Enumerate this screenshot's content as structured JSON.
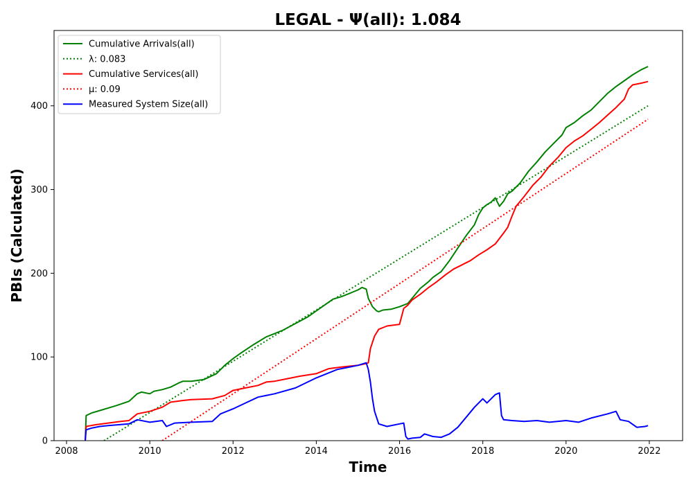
{
  "chart_data": {
    "type": "line",
    "title": "LEGAL -  Ψ(all): 1.084",
    "xlabel": "Time",
    "ylabel": "PBIs (Calculated)",
    "xlim": [
      2007.7,
      2022.8
    ],
    "ylim": [
      0,
      490
    ],
    "x_ticks": [
      2008,
      2010,
      2012,
      2014,
      2016,
      2018,
      2020,
      2022
    ],
    "x_tick_labels": [
      "2008",
      "2010",
      "2012",
      "2014",
      "2016",
      "2018",
      "2020",
      "2022"
    ],
    "y_ticks": [
      0,
      100,
      200,
      300,
      400
    ],
    "y_tick_labels": [
      "0",
      "100",
      "200",
      "300",
      "400"
    ],
    "grid": false,
    "legend_position": "top-left",
    "series": [
      {
        "name": "Cumulative Arrivals(all)",
        "color": "#008000",
        "style": "solid",
        "x": [
          2008.45,
          2008.47,
          2008.6,
          2008.8,
          2009.0,
          2009.2,
          2009.5,
          2009.7,
          2009.8,
          2010.0,
          2010.1,
          2010.3,
          2010.5,
          2010.7,
          2010.8,
          2011.0,
          2011.3,
          2011.6,
          2011.8,
          2012.0,
          2012.2,
          2012.5,
          2012.8,
          2013.0,
          2013.2,
          2013.5,
          2013.8,
          2014.0,
          2014.2,
          2014.4,
          2014.6,
          2014.8,
          2015.0,
          2015.1,
          2015.2,
          2015.25,
          2015.35,
          2015.45,
          2015.5,
          2015.6,
          2015.8,
          2016.0,
          2016.2,
          2016.3,
          2016.5,
          2016.6,
          2016.7,
          2016.8,
          2017.0,
          2017.2,
          2017.4,
          2017.6,
          2017.8,
          2017.9,
          2018.0,
          2018.1,
          2018.2,
          2018.3,
          2018.4,
          2018.5,
          2018.6,
          2018.7,
          2018.9,
          2019.1,
          2019.3,
          2019.5,
          2019.7,
          2019.9,
          2020.0,
          2020.2,
          2020.4,
          2020.6,
          2020.8,
          2021.0,
          2021.2,
          2021.4,
          2021.6,
          2021.8,
          2021.97
        ],
        "y": [
          0,
          30,
          33,
          36,
          39,
          42,
          47,
          56,
          58,
          56,
          59,
          61,
          64,
          69,
          71,
          71,
          73,
          80,
          90,
          98,
          105,
          115,
          124,
          128,
          132,
          140,
          148,
          155,
          162,
          169,
          172,
          176,
          180,
          183,
          181,
          170,
          160,
          155,
          154,
          156,
          157,
          160,
          164,
          170,
          182,
          186,
          190,
          195,
          202,
          215,
          230,
          245,
          258,
          270,
          278,
          282,
          285,
          290,
          280,
          286,
          295,
          298,
          308,
          322,
          333,
          345,
          355,
          365,
          374,
          380,
          388,
          395,
          405,
          415,
          423,
          430,
          437,
          443,
          447
        ]
      },
      {
        "name": "λ: 0.083",
        "color": "#008000",
        "style": "dotted",
        "x": [
          2008.9,
          2021.97
        ],
        "y": [
          0,
          400
        ]
      },
      {
        "name": "Cumulative Services(all)",
        "color": "#ff0000",
        "style": "solid",
        "x": [
          2008.45,
          2008.47,
          2008.7,
          2009.0,
          2009.3,
          2009.5,
          2009.7,
          2010.0,
          2010.3,
          2010.5,
          2010.8,
          2011.0,
          2011.5,
          2011.8,
          2012.0,
          2012.3,
          2012.6,
          2012.8,
          2013.0,
          2013.3,
          2013.6,
          2014.0,
          2014.3,
          2014.6,
          2015.0,
          2015.2,
          2015.25,
          2015.3,
          2015.4,
          2015.5,
          2015.7,
          2016.0,
          2016.1,
          2016.2,
          2016.3,
          2016.5,
          2016.7,
          2016.9,
          2017.1,
          2017.3,
          2017.5,
          2017.7,
          2017.9,
          2018.1,
          2018.3,
          2018.5,
          2018.6,
          2018.7,
          2018.8,
          2018.9,
          2019.0,
          2019.2,
          2019.4,
          2019.6,
          2019.8,
          2020.0,
          2020.2,
          2020.4,
          2020.6,
          2020.8,
          2021.0,
          2021.2,
          2021.4,
          2021.5,
          2021.6,
          2021.8,
          2021.97
        ],
        "y": [
          0,
          17,
          19,
          21,
          23,
          24,
          32,
          35,
          40,
          46,
          48,
          49,
          50,
          54,
          60,
          63,
          66,
          70,
          71,
          74,
          77,
          80,
          86,
          88,
          90,
          92,
          93,
          110,
          125,
          133,
          137,
          139,
          158,
          162,
          168,
          175,
          183,
          190,
          198,
          205,
          210,
          215,
          222,
          228,
          235,
          248,
          255,
          268,
          280,
          286,
          292,
          305,
          315,
          328,
          338,
          350,
          358,
          364,
          372,
          380,
          389,
          398,
          408,
          420,
          425,
          427,
          429
        ]
      },
      {
        "name": "μ: 0.09",
        "color": "#ff0000",
        "style": "dotted",
        "x": [
          2010.3,
          2021.97
        ],
        "y": [
          0,
          384
        ]
      },
      {
        "name": "Measured System Size(all)",
        "color": "#0000ff",
        "style": "solid",
        "x": [
          2008.45,
          2008.47,
          2008.6,
          2008.8,
          2009.0,
          2009.5,
          2009.7,
          2010.0,
          2010.3,
          2010.4,
          2010.6,
          2011.0,
          2011.5,
          2011.7,
          2012.0,
          2012.3,
          2012.6,
          2013.0,
          2013.5,
          2014.0,
          2014.5,
          2015.0,
          2015.2,
          2015.25,
          2015.3,
          2015.35,
          2015.4,
          2015.5,
          2015.7,
          2016.0,
          2016.1,
          2016.15,
          2016.2,
          2016.3,
          2016.5,
          2016.6,
          2016.8,
          2017.0,
          2017.2,
          2017.4,
          2017.6,
          2017.8,
          2018.0,
          2018.1,
          2018.3,
          2018.4,
          2018.45,
          2018.5,
          2018.7,
          2019.0,
          2019.3,
          2019.6,
          2020.0,
          2020.3,
          2020.6,
          2021.0,
          2021.2,
          2021.3,
          2021.5,
          2021.7,
          2021.9,
          2021.97
        ],
        "y": [
          0,
          13,
          15,
          17,
          18,
          20,
          25,
          22,
          24,
          17,
          21,
          22,
          23,
          32,
          38,
          45,
          52,
          56,
          63,
          75,
          85,
          90,
          93,
          85,
          70,
          50,
          35,
          20,
          17,
          20,
          21,
          5,
          2,
          3,
          4,
          8,
          5,
          4,
          8,
          16,
          28,
          40,
          50,
          45,
          55,
          57,
          30,
          25,
          24,
          23,
          24,
          22,
          24,
          22,
          27,
          32,
          35,
          25,
          23,
          16,
          17,
          18
        ]
      }
    ],
    "legend": [
      {
        "label": "Cumulative Arrivals(all)",
        "color": "#008000",
        "style": "solid"
      },
      {
        "label": "λ: 0.083",
        "color": "#008000",
        "style": "dotted"
      },
      {
        "label": "Cumulative Services(all)",
        "color": "#ff0000",
        "style": "solid"
      },
      {
        "label": "μ: 0.09",
        "color": "#ff0000",
        "style": "dotted"
      },
      {
        "label": "Measured System Size(all)",
        "color": "#0000ff",
        "style": "solid"
      }
    ]
  }
}
